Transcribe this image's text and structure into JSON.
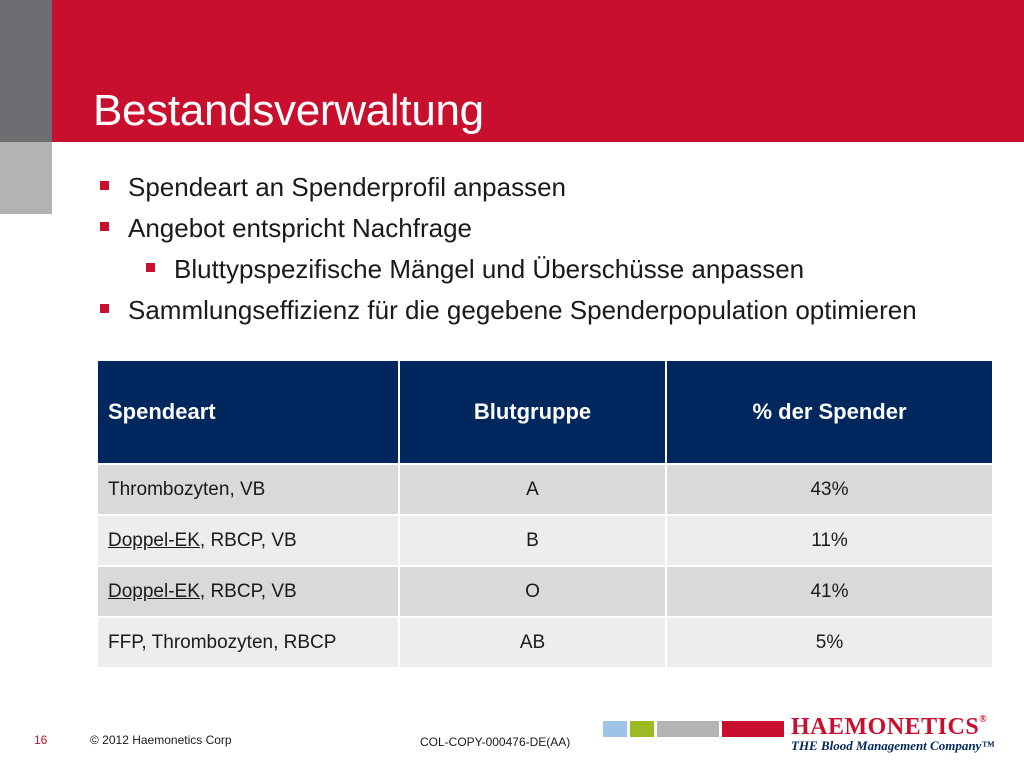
{
  "slide": {
    "title": "Bestandsverwaltung",
    "bullets": [
      {
        "text": "Spendeart an Spenderprofil anpassen",
        "level": 1
      },
      {
        "text": "Angebot entspricht Nachfrage",
        "level": 1
      },
      {
        "text": "Bluttypspezifische Mängel und Überschüsse anpassen",
        "level": 2
      },
      {
        "text": "Sammlungseffizienz für die gegebene Spenderpopulation optimieren",
        "level": 1
      }
    ]
  },
  "table": {
    "headers": [
      "Spendeart",
      "Blutgruppe",
      "% der Spender"
    ],
    "rows": [
      {
        "spendeart_link": "",
        "spendeart_rest": "Thrombozyten, VB",
        "blutgruppe": "A",
        "prozent": "43%"
      },
      {
        "spendeart_link": "Doppel-EK",
        "spendeart_rest": ", RBCP, VB",
        "blutgruppe": "B",
        "prozent": "11%"
      },
      {
        "spendeart_link": "Doppel-EK",
        "spendeart_rest": ", RBCP, VB",
        "blutgruppe": "O",
        "prozent": "41%"
      },
      {
        "spendeart_link": "",
        "spendeart_rest": "FFP, Thrombozyten, RBCP",
        "blutgruppe": "AB",
        "prozent": "5%"
      }
    ]
  },
  "footer": {
    "page_number": "16",
    "copyright": "© 2012 Haemonetics Corp",
    "doc_code": "COL-COPY-000476-DE(AA)"
  },
  "logo": {
    "name": "HAEMONETICS",
    "registered": "®",
    "tagline": "THE Blood Management Company™"
  },
  "colors": {
    "accent_red": "#c8102e",
    "table_header": "#00285e",
    "sidebar_gray": "#6d6e71",
    "strip": [
      "#9dc3e6",
      "#9bbb22",
      "#b3b3b3",
      "#c8102e"
    ]
  }
}
